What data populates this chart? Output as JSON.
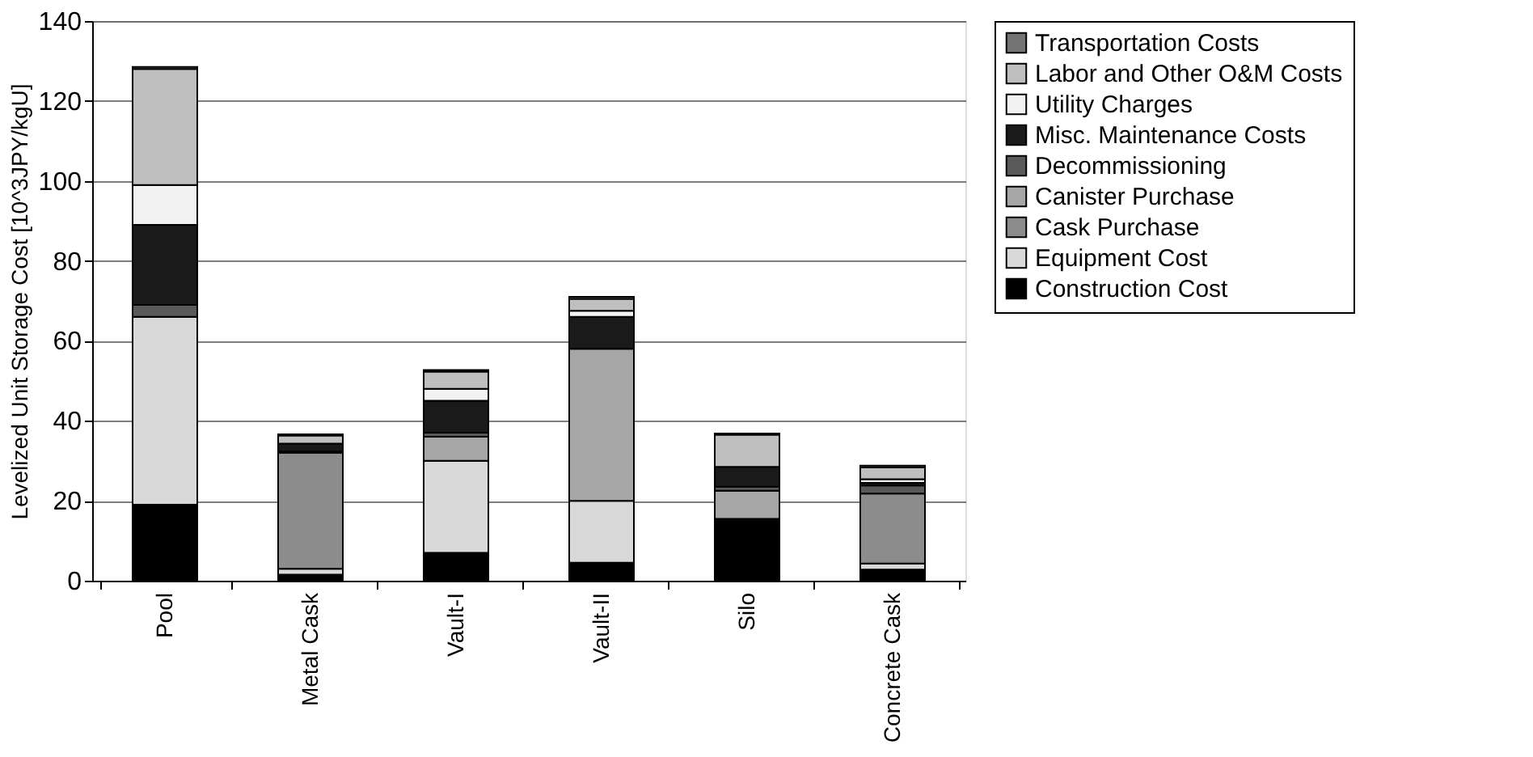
{
  "chart_data": {
    "type": "bar",
    "stacked": true,
    "ylabel": "Levelized Unit Storage Cost [10^3JPY/kgU]",
    "categories": [
      "Pool",
      "Metal Cask",
      "Vault-I",
      "Vault-II",
      "Silo",
      "Concrete Cask"
    ],
    "series": [
      {
        "name": "Construction Cost",
        "color": "#000000",
        "values": [
          19,
          1.5,
          7,
          4.5,
          15.5,
          2.8
        ]
      },
      {
        "name": "Equipment Cost",
        "color": "#d9d9d9",
        "values": [
          47,
          1.5,
          23,
          15.5,
          0,
          1.5
        ]
      },
      {
        "name": "Cask Purchase",
        "color": "#8c8c8c",
        "values": [
          0,
          29,
          0,
          0,
          0,
          17.5
        ]
      },
      {
        "name": "Canister Purchase",
        "color": "#a6a6a6",
        "values": [
          0,
          0,
          6,
          38,
          7,
          0
        ]
      },
      {
        "name": "Decommissioning",
        "color": "#595959",
        "values": [
          3,
          0.3,
          1,
          null,
          1,
          2
        ]
      },
      {
        "name": "Misc. Maintenance Costs",
        "color": "#1a1a1a",
        "values": [
          20,
          2,
          8,
          8,
          5,
          0.7
        ]
      },
      {
        "name": "Utility Charges",
        "color": "#f2f2f2",
        "values": [
          10,
          null,
          3,
          1.5,
          null,
          0.9
        ]
      },
      {
        "name": "Labor and Other O&M Costs",
        "color": "#bfbfbf",
        "values": [
          29,
          2,
          4.3,
          3,
          8,
          2.9
        ]
      },
      {
        "name": "Transportation Costs",
        "color": "#737373",
        "values": [
          0.5,
          0.3,
          0.4,
          0.5,
          0.3,
          0.5
        ]
      }
    ],
    "ylim": [
      0,
      140
    ],
    "yticks": [
      0,
      20,
      40,
      60,
      80,
      100,
      120,
      140
    ],
    "grid": "y",
    "legend": "right"
  }
}
